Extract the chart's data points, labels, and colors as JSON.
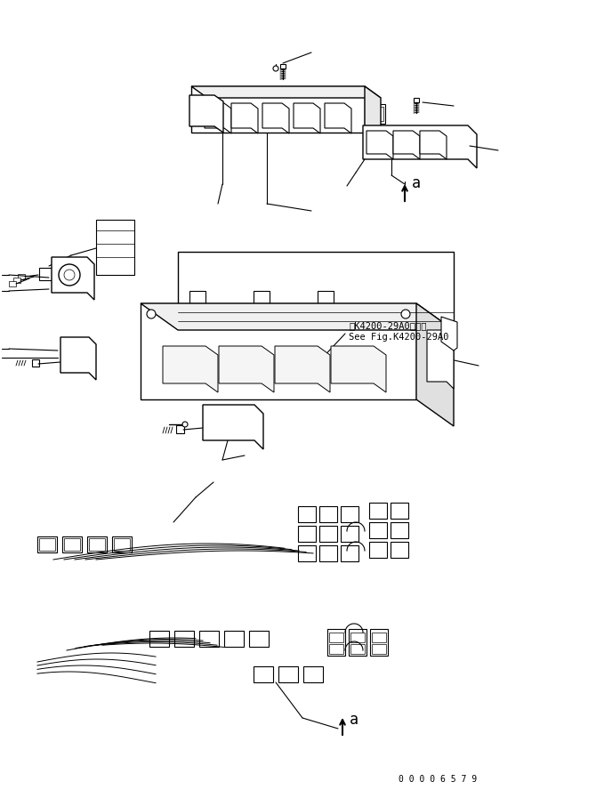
{
  "bg_color": "#ffffff",
  "line_color": "#000000",
  "line_width": 1.0,
  "thin_line": 0.5,
  "fig_width": 6.7,
  "fig_height": 8.97,
  "dpi": 100,
  "annotation_text1": "第K4200-29A0図参照",
  "annotation_text2": "See Fig.K4200-29A0",
  "label_a1": "a",
  "label_a2": "a",
  "serial_text": "0 0 0 0 6 5 7 9"
}
